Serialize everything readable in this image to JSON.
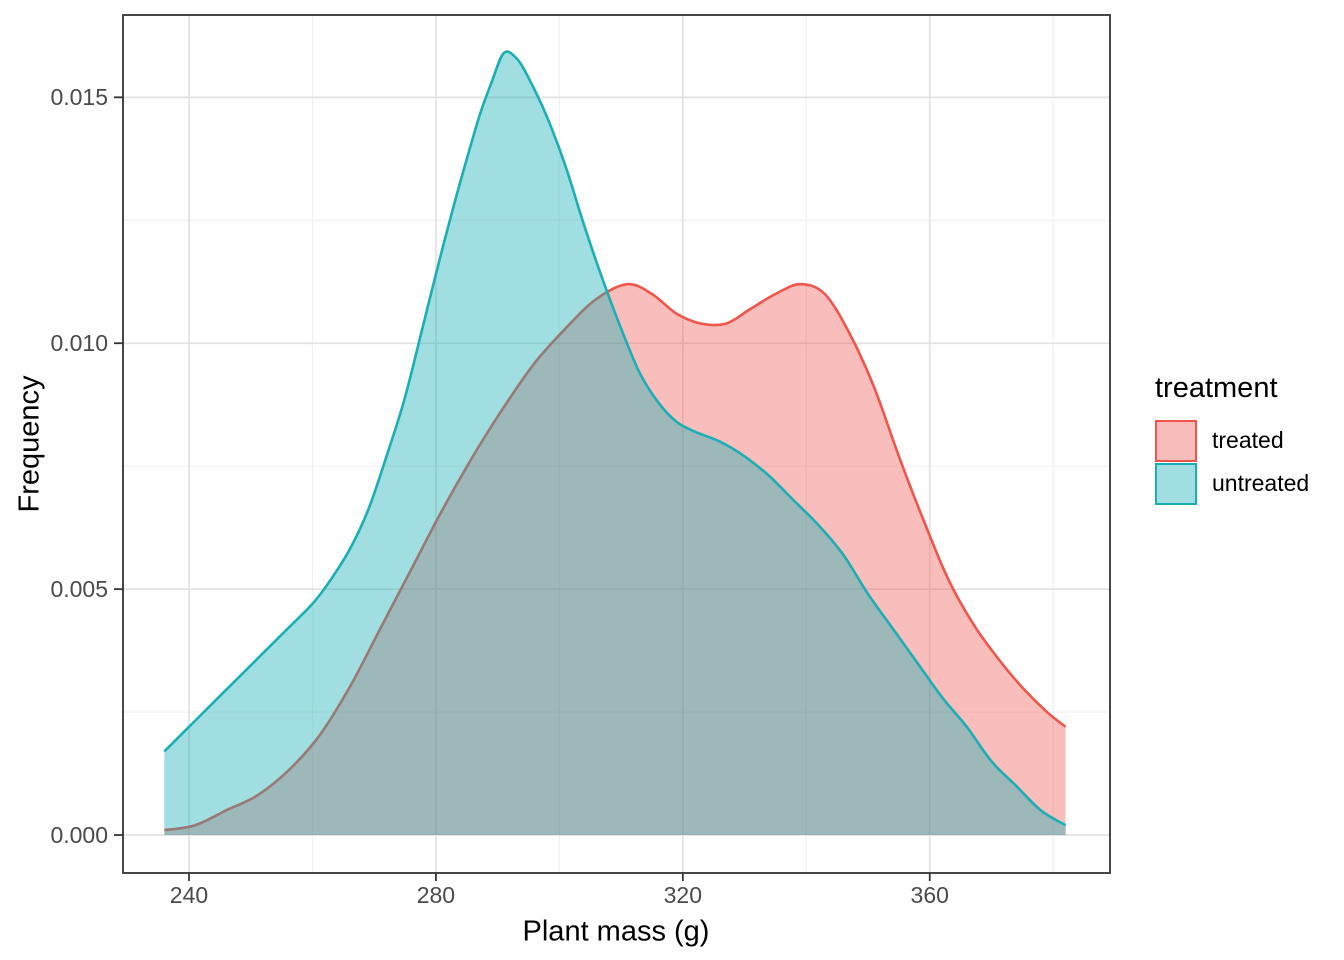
{
  "chart_data": {
    "type": "area",
    "subtype": "density",
    "title": "",
    "xlabel": "Plant mass (g)",
    "ylabel": "Frequency",
    "xlim": [
      229.31,
      389.2
    ],
    "ylim": [
      -0.000772,
      0.016674
    ],
    "grid": "on",
    "x_ticks": {
      "values": [
        240,
        280,
        320,
        360
      ],
      "labels": [
        "240",
        "280",
        "320",
        "360"
      ]
    },
    "x_minor": [
      260,
      300,
      340,
      380
    ],
    "y_ticks": {
      "values": [
        0,
        0.005,
        0.01,
        0.015
      ],
      "labels": [
        "0.000",
        "0.005",
        "0.010",
        "0.015"
      ]
    },
    "y_minor": [
      0.0025,
      0.0075,
      0.0125
    ],
    "colors": {
      "panel_bg": "#ffffff",
      "panel_border": "#333333",
      "grid_major": "#e3e3e3",
      "grid_minor": "#f0f0f0",
      "tick_mark": "#333333",
      "tick_text": "#4a4a4a",
      "treated_stroke": "#EF554B",
      "untreated_stroke": "#1AAFB5"
    },
    "legend": {
      "title": "treatment",
      "position": "right",
      "entries": [
        {
          "label": "treated",
          "stroke": "#EF554B",
          "fill": "rgba(239,85,75,0.38)"
        },
        {
          "label": "untreated",
          "stroke": "#1AAFB5",
          "fill": "rgba(26,175,181,0.41)"
        }
      ]
    },
    "series": [
      {
        "name": "treated",
        "color": "#EF554B",
        "fill_opacity": 0.38,
        "points": [
          [
            236,
            0.0001
          ],
          [
            241,
            0.0002
          ],
          [
            246,
            0.0005
          ],
          [
            251,
            0.0008
          ],
          [
            256,
            0.0013
          ],
          [
            261,
            0.002
          ],
          [
            266,
            0.003
          ],
          [
            271,
            0.0042
          ],
          [
            276,
            0.0054
          ],
          [
            281,
            0.0066
          ],
          [
            286,
            0.0077
          ],
          [
            291,
            0.0087
          ],
          [
            296,
            0.0096
          ],
          [
            301,
            0.0103
          ],
          [
            306,
            0.0109
          ],
          [
            311,
            0.0112
          ],
          [
            315,
            0.011
          ],
          [
            319,
            0.0106
          ],
          [
            323,
            0.0104
          ],
          [
            327,
            0.0104
          ],
          [
            331,
            0.0107
          ],
          [
            335,
            0.011
          ],
          [
            339,
            0.0112
          ],
          [
            343,
            0.011
          ],
          [
            347,
            0.0102
          ],
          [
            351,
            0.0091
          ],
          [
            355,
            0.0077
          ],
          [
            359,
            0.0064
          ],
          [
            363,
            0.0052
          ],
          [
            367,
            0.0043
          ],
          [
            371,
            0.0036
          ],
          [
            375,
            0.003
          ],
          [
            379,
            0.0025
          ],
          [
            382,
            0.0022
          ]
        ]
      },
      {
        "name": "untreated",
        "color": "#1AAFB5",
        "fill_opacity": 0.41,
        "points": [
          [
            236,
            0.0017
          ],
          [
            240,
            0.0022
          ],
          [
            244,
            0.0027
          ],
          [
            248,
            0.0032
          ],
          [
            252,
            0.0037
          ],
          [
            256,
            0.0042
          ],
          [
            260,
            0.0047
          ],
          [
            263,
            0.0052
          ],
          [
            266,
            0.0058
          ],
          [
            269,
            0.0066
          ],
          [
            272,
            0.0077
          ],
          [
            275,
            0.0089
          ],
          [
            278,
            0.0104
          ],
          [
            281,
            0.0119
          ],
          [
            284,
            0.0133
          ],
          [
            287,
            0.0146
          ],
          [
            289,
            0.0153
          ],
          [
            291,
            0.0159
          ],
          [
            293,
            0.0158
          ],
          [
            295,
            0.0154
          ],
          [
            298,
            0.0146
          ],
          [
            301,
            0.0136
          ],
          [
            304,
            0.0124
          ],
          [
            307,
            0.0113
          ],
          [
            310,
            0.0103
          ],
          [
            313,
            0.0094
          ],
          [
            316,
            0.0088
          ],
          [
            319,
            0.0084
          ],
          [
            322,
            0.0082
          ],
          [
            326,
            0.008
          ],
          [
            330,
            0.0077
          ],
          [
            334,
            0.0073
          ],
          [
            338,
            0.0068
          ],
          [
            342,
            0.0063
          ],
          [
            346,
            0.0057
          ],
          [
            350,
            0.0049
          ],
          [
            354,
            0.0042
          ],
          [
            358,
            0.0035
          ],
          [
            362,
            0.0028
          ],
          [
            366,
            0.0022
          ],
          [
            370,
            0.0015
          ],
          [
            374,
            0.001
          ],
          [
            378,
            0.0005
          ],
          [
            382,
            0.0002
          ]
        ]
      }
    ]
  }
}
